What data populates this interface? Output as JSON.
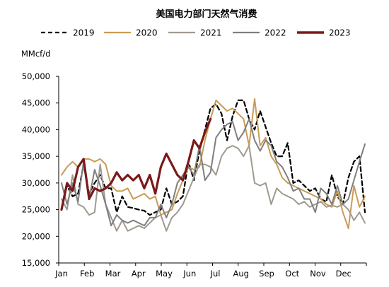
{
  "chart_data": {
    "type": "line",
    "title": "美国电力部门天然气消费",
    "ylabel": "MMcf/d",
    "xlabel": "",
    "ylim": [
      15000,
      50000
    ],
    "yticks": [
      15000,
      20000,
      25000,
      30000,
      35000,
      40000,
      45000,
      50000
    ],
    "ytick_labels": [
      "15,000",
      "20,000",
      "25,000",
      "30,000",
      "35,000",
      "40,000",
      "45,000",
      "50,000"
    ],
    "month_labels": [
      "Jan",
      "Feb",
      "Mar",
      "Apr",
      "May",
      "Jun",
      "Jul",
      "Aug",
      "Sep",
      "Oct",
      "Nov",
      "Dec"
    ],
    "legend_position": "top",
    "grid": false,
    "x_unit": "week of year",
    "series": [
      {
        "name": "2019",
        "color": "#000000",
        "dash": true,
        "values": [
          25000,
          29500,
          27500,
          28000,
          33500,
          28000,
          30000,
          31500,
          29000,
          29000,
          24500,
          27500,
          25500,
          25300,
          25000,
          24800,
          24000,
          24500,
          25000,
          29000,
          26000,
          26500,
          27500,
          34000,
          30500,
          36000,
          40000,
          44000,
          44800,
          43000,
          38000,
          42500,
          45500,
          45500,
          42000,
          40000,
          43500,
          40500,
          37500,
          35000,
          35000,
          37500,
          30000,
          30500,
          29500,
          28500,
          29000,
          27000,
          26500,
          31500,
          27500,
          26000,
          31000,
          34000,
          35000,
          24500
        ]
      },
      {
        "name": "2020",
        "color": "#c89c55",
        "dash": false,
        "values": [
          31500,
          33000,
          34000,
          33000,
          34500,
          34500,
          34000,
          34500,
          33500,
          29500,
          28500,
          28500,
          29000,
          27000,
          27500,
          28000,
          27000,
          27500,
          24000,
          24500,
          25000,
          28000,
          30500,
          33000,
          32500,
          33000,
          38000,
          42000,
          45500,
          44500,
          43500,
          44000,
          43000,
          42000,
          37000,
          45800,
          37000,
          38500,
          35000,
          33500,
          31000,
          30000,
          29500,
          29000,
          28500,
          28000,
          27500,
          27000,
          26000,
          25500,
          28500,
          24500,
          21500,
          29500,
          25500,
          27500
        ]
      },
      {
        "name": "2021",
        "color": "#a09a8e",
        "dash": false,
        "values": [
          27000,
          25000,
          31500,
          26000,
          25500,
          24000,
          24500,
          33500,
          26000,
          23500,
          21000,
          23000,
          21000,
          21500,
          22000,
          21500,
          22500,
          23500,
          24000,
          21000,
          23500,
          24500,
          26000,
          28500,
          31000,
          33500,
          33500,
          33000,
          31500,
          35000,
          36500,
          37000,
          36500,
          35000,
          37000,
          30000,
          29500,
          30000,
          26000,
          29000,
          28000,
          27500,
          27000,
          26000,
          26500,
          25500,
          26000,
          26500,
          25500,
          25800,
          25500,
          26000,
          25000,
          23000,
          24500,
          22500
        ]
      },
      {
        "name": "2022",
        "color": "#7f7f7f",
        "dash": false,
        "values": [
          30000,
          26000,
          30000,
          26500,
          34000,
          27000,
          32500,
          29500,
          26000,
          22000,
          24000,
          23000,
          22500,
          23000,
          22500,
          22000,
          23500,
          23500,
          26000,
          23500,
          26000,
          30000,
          31500,
          33000,
          31500,
          37000,
          30500,
          32000,
          38500,
          40000,
          41000,
          41500,
          38000,
          39500,
          42000,
          38000,
          36000,
          38000,
          37000,
          34000,
          33000,
          31000,
          28500,
          29000,
          27000,
          27000,
          24500,
          29000,
          28000,
          26000,
          29500,
          26000,
          27000,
          30500,
          34000,
          37300
        ]
      },
      {
        "name": "2023",
        "color": "#7a1a1a",
        "dash": false,
        "values": [
          25000,
          30000,
          28500,
          33000,
          34500,
          27000,
          29000,
          28500,
          29000,
          30000,
          32000,
          30500,
          31500,
          30500,
          31500,
          29000,
          31500,
          28000,
          33000,
          35500,
          33500,
          31500,
          30500,
          34000,
          38000,
          36500,
          39500,
          42000
        ]
      }
    ]
  }
}
